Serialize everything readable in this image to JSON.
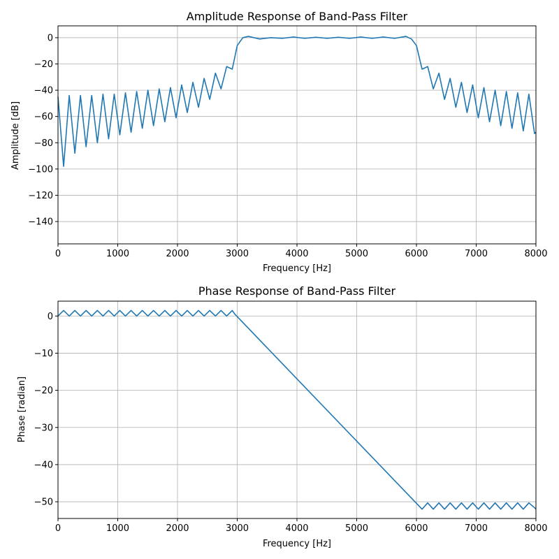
{
  "chart_data": [
    {
      "type": "line",
      "title": "Amplitude Response of Band-Pass Filter",
      "xlabel": "Frequency [Hz]",
      "ylabel": "Amplitude [dB]",
      "xlim": [
        0,
        8000
      ],
      "ylim": [
        -157,
        9
      ],
      "xticks": [
        0,
        1000,
        2000,
        3000,
        4000,
        5000,
        6000,
        7000,
        8000
      ],
      "yticks": [
        0,
        -20,
        -40,
        -60,
        -80,
        -100,
        -120,
        -140
      ],
      "grid": true,
      "color": "#1f77b4",
      "series": [
        {
          "x": [
            0,
            94,
            188,
            282,
            376,
            470,
            564,
            659,
            753,
            847,
            941,
            1035,
            1129,
            1223,
            1317,
            1411,
            1505,
            1599,
            1694,
            1788,
            1882,
            1976,
            2070,
            2164,
            2258,
            2352,
            2446,
            2540,
            2635,
            2729,
            2823,
            2917,
            3000,
            3094,
            3188,
            3376,
            3564,
            3753,
            3941,
            4129,
            4317,
            4505,
            4694,
            4882,
            5070,
            5258,
            5446,
            5635,
            5823,
            5917,
            6000,
            6094,
            6188,
            6282,
            6376,
            6470,
            6564,
            6659,
            6753,
            6847,
            6941,
            7035,
            7129,
            7223,
            7317,
            7411,
            7505,
            7599,
            7694,
            7788,
            7882,
            7976,
            8000
          ],
          "y": [
            -45,
            -98,
            -44,
            -88,
            -44,
            -83,
            -44,
            -80,
            -43,
            -77,
            -43,
            -74,
            -42,
            -72,
            -41,
            -69,
            -40,
            -67,
            -39,
            -64,
            -38,
            -61,
            -36,
            -57,
            -34,
            -53,
            -31,
            -47,
            -27,
            -39,
            -22,
            -24,
            -6,
            0,
            1,
            -1,
            0,
            -0.5,
            0.5,
            -0.5,
            0.3,
            -0.5,
            0.3,
            -0.5,
            0.5,
            -0.5,
            0.5,
            -0.5,
            1,
            -1,
            -6,
            -24,
            -22,
            -39,
            -27,
            -47,
            -31,
            -53,
            -34,
            -57,
            -36,
            -61,
            -38,
            -64,
            -40,
            -67,
            -41,
            -69,
            -42,
            -71,
            -43,
            -73,
            -72
          ]
        }
      ]
    },
    {
      "type": "line",
      "title": "Phase Response of Band-Pass Filter",
      "xlabel": "Frequency [Hz]",
      "ylabel": "Phase [radian]",
      "xlim": [
        0,
        8000
      ],
      "ylim": [
        -54.5,
        4
      ],
      "xticks": [
        0,
        1000,
        2000,
        3000,
        4000,
        5000,
        6000,
        7000,
        8000
      ],
      "yticks": [
        0,
        -10,
        -20,
        -30,
        -40,
        -50
      ],
      "grid": true,
      "color": "#1f77b4",
      "series": [
        {
          "x": [
            0,
            94,
            188,
            282,
            376,
            470,
            564,
            659,
            753,
            847,
            941,
            1035,
            1129,
            1223,
            1317,
            1411,
            1505,
            1599,
            1694,
            1788,
            1882,
            1976,
            2070,
            2164,
            2258,
            2352,
            2446,
            2540,
            2635,
            2729,
            2823,
            2917,
            2960,
            6094,
            6188,
            6282,
            6376,
            6470,
            6564,
            6659,
            6753,
            6847,
            6941,
            7035,
            7129,
            7223,
            7317,
            7411,
            7505,
            7599,
            7694,
            7788,
            7882,
            7976,
            8000
          ],
          "y": [
            0,
            1.5,
            0,
            1.5,
            0,
            1.5,
            0,
            1.5,
            0,
            1.5,
            0,
            1.5,
            0,
            1.5,
            0,
            1.5,
            0,
            1.5,
            0,
            1.5,
            0,
            1.5,
            0,
            1.5,
            0,
            1.5,
            0,
            1.5,
            0,
            1.5,
            0,
            1.5,
            0.5,
            -52,
            -50.3,
            -52,
            -50.3,
            -52,
            -50.3,
            -52,
            -50.3,
            -52,
            -50.3,
            -52,
            -50.3,
            -52,
            -50.3,
            -52,
            -50.3,
            -52,
            -50.3,
            -52,
            -50.3,
            -51.6,
            -52
          ]
        }
      ]
    }
  ]
}
